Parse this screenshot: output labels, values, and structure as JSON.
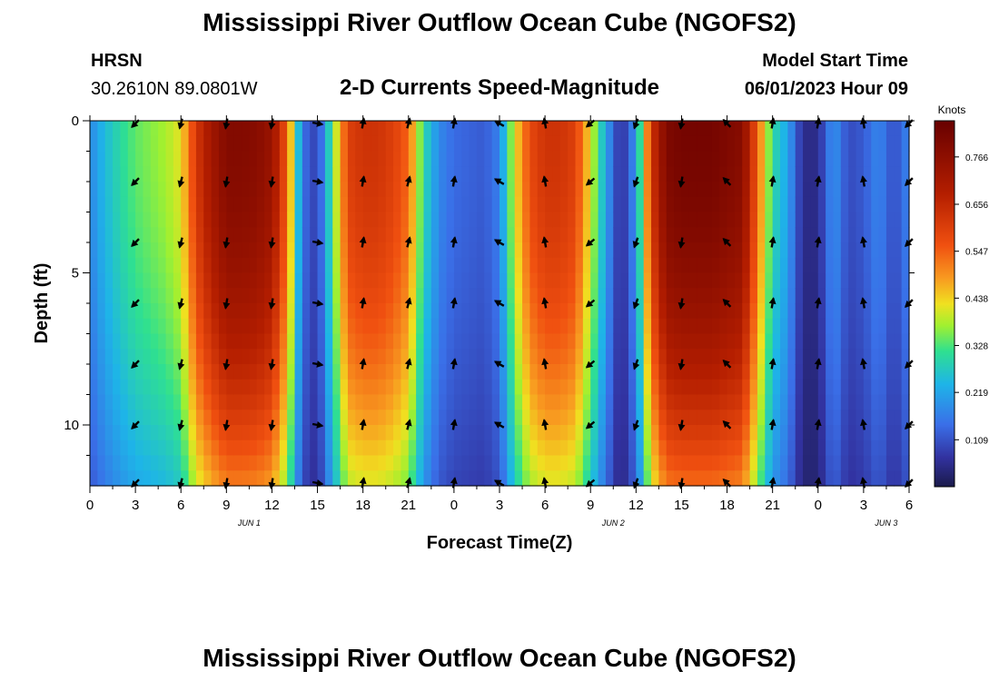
{
  "header": {
    "title": "Mississippi River Outflow Ocean Cube (NGOFS2)",
    "station_name": "HRSN",
    "station_coords": "30.2610N  89.0801W",
    "subtitle": "2-D Currents Speed-Magnitude",
    "model_start_label": "Model Start Time",
    "model_start_value": "06/01/2023 Hour 09"
  },
  "footer": {
    "title_repeat": "Mississippi River Outflow Ocean Cube (NGOFS2)"
  },
  "chart_data": {
    "type": "heatmap",
    "title": "2-D Currents Speed-Magnitude",
    "xlabel": "Forecast Time(Z)",
    "ylabel": "Depth (ft)",
    "x_range_hours": [
      0,
      54
    ],
    "y_range_ft": [
      0,
      12
    ],
    "y_inverted": true,
    "x_tick_labels": [
      "0",
      "3",
      "6",
      "9",
      "12",
      "15",
      "18",
      "21",
      "0",
      "3",
      "6",
      "9",
      "12",
      "15",
      "18",
      "21",
      "0",
      "3",
      "6"
    ],
    "date_labels": [
      {
        "hour": 10.5,
        "text": "JUN 1"
      },
      {
        "hour": 34.5,
        "text": "JUN 2"
      },
      {
        "hour": 52.5,
        "text": "JUN 3"
      }
    ],
    "y_ticks": [
      0,
      5,
      10
    ],
    "colorbar": {
      "title": "Knots",
      "min": 0.0,
      "max": 0.85,
      "tick_values": [
        0.109,
        0.219,
        0.328,
        0.438,
        0.547,
        0.656,
        0.766
      ],
      "tick_labels": [
        "0.109",
        "0.219",
        "0.328",
        "0.438",
        "0.547",
        "0.656",
        "0.766"
      ]
    },
    "surface_speed_knots_by_hour": {
      "hours": [
        0,
        1,
        2,
        3,
        4,
        5,
        6,
        7,
        8,
        9,
        10,
        11,
        12,
        13,
        14,
        15,
        16,
        17,
        18,
        19,
        20,
        21,
        22,
        23,
        24,
        25,
        26,
        27,
        28,
        29,
        30,
        31,
        32,
        33,
        34,
        35,
        36,
        37,
        38,
        39,
        40,
        41,
        42,
        43,
        44,
        45,
        46,
        47,
        48,
        49,
        50,
        51,
        52,
        53,
        54
      ],
      "values": [
        0.18,
        0.25,
        0.3,
        0.34,
        0.36,
        0.38,
        0.42,
        0.62,
        0.72,
        0.79,
        0.79,
        0.78,
        0.74,
        0.55,
        0.15,
        0.08,
        0.34,
        0.6,
        0.63,
        0.63,
        0.6,
        0.54,
        0.3,
        0.18,
        0.14,
        0.13,
        0.12,
        0.17,
        0.42,
        0.58,
        0.63,
        0.63,
        0.6,
        0.42,
        0.22,
        0.05,
        0.2,
        0.62,
        0.8,
        0.82,
        0.82,
        0.82,
        0.8,
        0.78,
        0.55,
        0.3,
        0.22,
        0.05,
        0.05,
        0.2,
        0.1,
        0.12,
        0.18,
        0.1,
        0.18
      ]
    },
    "vector_rows_depth_ft": [
      0,
      2,
      4,
      6,
      8,
      10,
      12
    ],
    "vector_columns_hours": [
      3,
      6,
      9,
      12,
      15,
      18,
      21,
      24,
      27,
      30,
      33,
      36,
      39,
      42,
      45,
      48,
      51,
      54
    ],
    "vector_directions_deg": {
      "3": 225,
      "6": 195,
      "9": 190,
      "12": 190,
      "15": 100,
      "18": 10,
      "21": 15,
      "24": 10,
      "27": 300,
      "30": 350,
      "33": 230,
      "36": 200,
      "39": 190,
      "42": 315,
      "45": 10,
      "48": 10,
      "51": 350,
      "54": 225
    }
  }
}
